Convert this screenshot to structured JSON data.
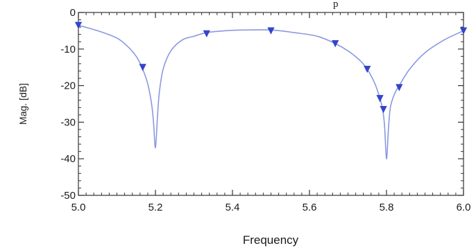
{
  "chart_data": {
    "type": "line",
    "title": "",
    "top_text_fragment": "p",
    "xlabel": "Frequency",
    "ylabel": "Mag. [dB]",
    "xlim": [
      5.0,
      6.0
    ],
    "ylim": [
      -50,
      0
    ],
    "grid": false,
    "x_ticks": [
      5.0,
      5.2,
      5.4,
      5.6,
      5.8,
      6.0
    ],
    "x_tick_labels": [
      "5.0",
      "5.2",
      "5.4",
      "5.6",
      "5.8",
      "6.0"
    ],
    "y_ticks": [
      0,
      -10,
      -20,
      -30,
      -40,
      -50
    ],
    "y_tick_labels": [
      "0",
      "-10",
      "-20",
      "-30",
      "-40",
      "-50"
    ],
    "colors": {
      "line": "#8a98e0",
      "marker": "#3344cc",
      "axis": "#333333"
    },
    "series": [
      {
        "x": [
          5.0,
          5.05,
          5.1,
          5.13,
          5.15,
          5.165,
          5.18,
          5.19,
          5.195,
          5.2,
          5.205,
          5.21,
          5.22,
          5.24,
          5.27,
          5.3,
          5.333,
          5.38,
          5.43,
          5.5,
          5.56,
          5.62,
          5.667,
          5.7,
          5.73,
          5.75,
          5.77,
          5.783,
          5.79,
          5.795,
          5.8,
          5.805,
          5.81,
          5.82,
          5.833,
          5.86,
          5.9,
          5.95,
          6.0
        ],
        "y": [
          -3.5,
          -5.0,
          -7.0,
          -9.5,
          -12.0,
          -15.0,
          -19.5,
          -25.0,
          -30.0,
          -37.0,
          -29.0,
          -22.0,
          -15.5,
          -10.5,
          -7.5,
          -6.5,
          -5.5,
          -5.0,
          -4.8,
          -4.8,
          -5.5,
          -6.5,
          -8.5,
          -10.5,
          -13.0,
          -15.5,
          -19.5,
          -23.5,
          -26.5,
          -31.0,
          -40.0,
          -32.0,
          -26.0,
          -22.5,
          -20.0,
          -15.5,
          -11.0,
          -7.5,
          -5.0
        ]
      }
    ],
    "markers": {
      "x": [
        5.0,
        5.167,
        5.333,
        5.5,
        5.667,
        5.75,
        5.783,
        5.792,
        5.833,
        6.0
      ],
      "y": [
        -3.5,
        -15.0,
        -5.8,
        -5.0,
        -8.5,
        -15.5,
        -23.5,
        -26.5,
        -20.5,
        -5.0
      ]
    }
  }
}
